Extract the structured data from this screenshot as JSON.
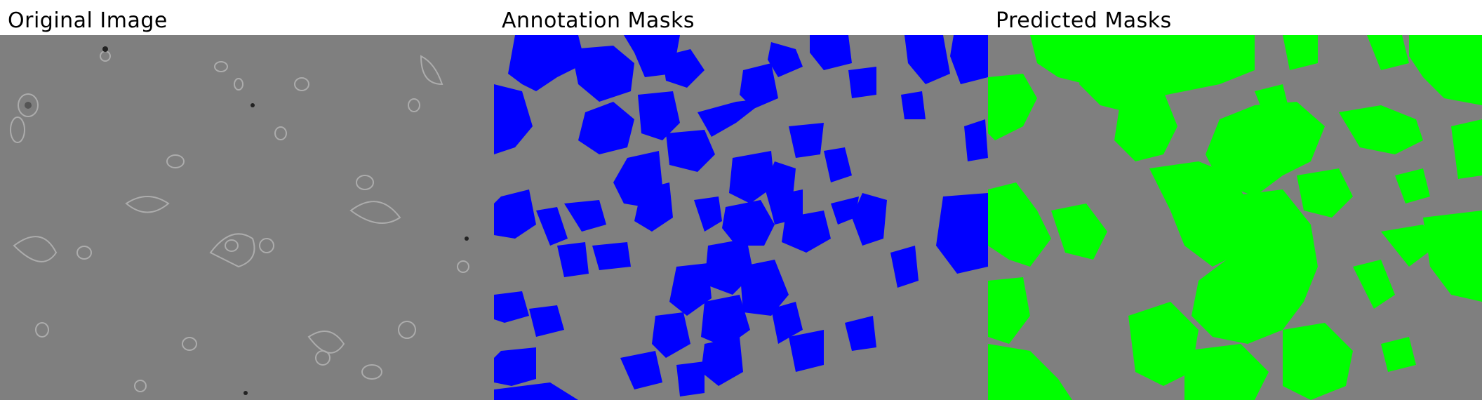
{
  "panels": [
    {
      "title": "Original Image"
    },
    {
      "title": "Annotation Masks",
      "mask_color": "#0000ff"
    },
    {
      "title": "Predicted Masks",
      "mask_color": "#00ff00"
    }
  ],
  "colors": {
    "background": "#ffffff",
    "micrograph_gray": "#7f7f7f",
    "annotation_mask": "#0000ff",
    "predicted_mask": "#00ff00"
  }
}
